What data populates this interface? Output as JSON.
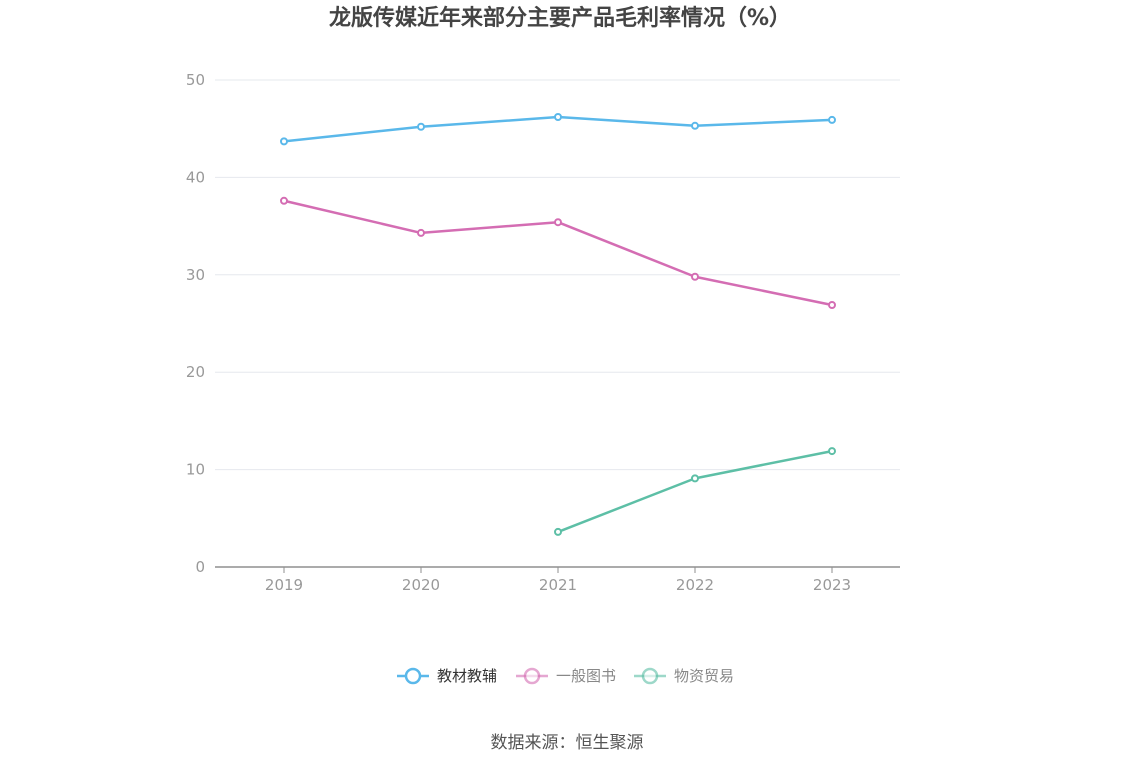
{
  "chart_data": {
    "type": "line",
    "title": "龙版传媒近年来部分主要产品毛利率情况（%）",
    "xlabel": "",
    "ylabel": "",
    "categories": [
      "2019",
      "2020",
      "2021",
      "2022",
      "2023"
    ],
    "ylim": [
      0,
      50
    ],
    "yticks": [
      0,
      10,
      20,
      30,
      40,
      50
    ],
    "grid": true,
    "legend_position": "bottom",
    "series": [
      {
        "name": "教材教辅",
        "color": "#5ab8ea",
        "values": [
          43.7,
          45.2,
          46.2,
          45.3,
          45.9
        ]
      },
      {
        "name": "一般图书",
        "color": "#d46db3",
        "values": [
          37.6,
          34.3,
          35.4,
          29.8,
          26.9
        ]
      },
      {
        "name": "物资贸易",
        "color": "#5dbfa6",
        "values": [
          null,
          null,
          3.6,
          9.1,
          11.9
        ]
      }
    ]
  },
  "source": "数据来源：恒生聚源"
}
